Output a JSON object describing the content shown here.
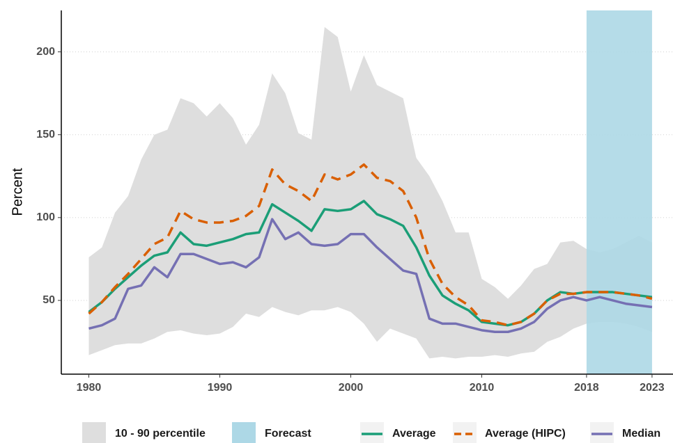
{
  "chart_data": {
    "type": "line",
    "y_label": "Percent",
    "x": [
      1980,
      1981,
      1982,
      1983,
      1984,
      1985,
      1986,
      1987,
      1988,
      1989,
      1990,
      1991,
      1992,
      1993,
      1994,
      1995,
      1996,
      1997,
      1998,
      1999,
      2000,
      2001,
      2002,
      2003,
      2004,
      2005,
      2006,
      2007,
      2008,
      2009,
      2010,
      2011,
      2012,
      2013,
      2014,
      2015,
      2016,
      2017,
      2018,
      2019,
      2020,
      2021,
      2022,
      2023
    ],
    "xlim": [
      1977.9,
      2024.6
    ],
    "xticks": [
      1980,
      1990,
      2000,
      2010,
      2018,
      2023
    ],
    "ylim": [
      5.5,
      225
    ],
    "yticks": [
      50,
      100,
      150,
      200
    ],
    "grid": true,
    "band": {
      "name": "10 - 90 percentile",
      "color": "#dedede",
      "lower": [
        17,
        20,
        23,
        24,
        24,
        27,
        31,
        32,
        30,
        29,
        30,
        34,
        42,
        40,
        46,
        43,
        41,
        44,
        44,
        46,
        43,
        36,
        25,
        33,
        30,
        27,
        15,
        16,
        15,
        16,
        16,
        17,
        16,
        18,
        19,
        25,
        28,
        33,
        36,
        37,
        37,
        36,
        34,
        31
      ],
      "upper": [
        76,
        82,
        103,
        113,
        135,
        150,
        153,
        172,
        169,
        161,
        169,
        160,
        144,
        156,
        187,
        175,
        151,
        147,
        215,
        209,
        176,
        198,
        180,
        176,
        172,
        136,
        125,
        110,
        91,
        91,
        63,
        58,
        51,
        59,
        69,
        72,
        85,
        86,
        81,
        79,
        81,
        85,
        89,
        85
      ]
    },
    "forecast": {
      "name": "Forecast",
      "color": "#add8e6",
      "x": [
        2018,
        2023
      ]
    },
    "series": [
      {
        "name": "Average",
        "color": "#1b9e77",
        "dashed": false,
        "values": [
          43,
          49,
          57,
          64,
          71,
          77,
          79,
          91,
          84,
          83,
          85,
          87,
          90,
          91,
          108,
          103,
          98,
          92,
          105,
          104,
          105,
          110,
          102,
          99,
          95,
          82,
          65,
          53,
          48,
          44,
          37,
          36,
          35,
          37,
          42,
          50,
          55,
          54,
          55,
          55,
          55,
          54,
          53,
          52
        ]
      },
      {
        "name": "Average (HIPC)",
        "color": "#d95f02",
        "dashed": true,
        "values": [
          42,
          49,
          58,
          66,
          75,
          84,
          88,
          104,
          99,
          97,
          97,
          98,
          101,
          107,
          129,
          120,
          116,
          110,
          126,
          123,
          126,
          132,
          124,
          122,
          116,
          100,
          75,
          60,
          52,
          47,
          38,
          37,
          35,
          37,
          42,
          50,
          54,
          54,
          55,
          55,
          55,
          54,
          53,
          51
        ]
      },
      {
        "name": "Median",
        "color": "#7570b3",
        "dashed": false,
        "values": [
          33,
          35,
          39,
          57,
          59,
          70,
          64,
          78,
          78,
          75,
          72,
          73,
          70,
          76,
          99,
          87,
          91,
          84,
          83,
          84,
          90,
          90,
          82,
          75,
          68,
          66,
          39,
          36,
          36,
          34,
          32,
          31,
          31,
          33,
          37,
          45,
          50,
          52,
          50,
          52,
          50,
          48,
          47,
          46
        ]
      }
    ]
  }
}
